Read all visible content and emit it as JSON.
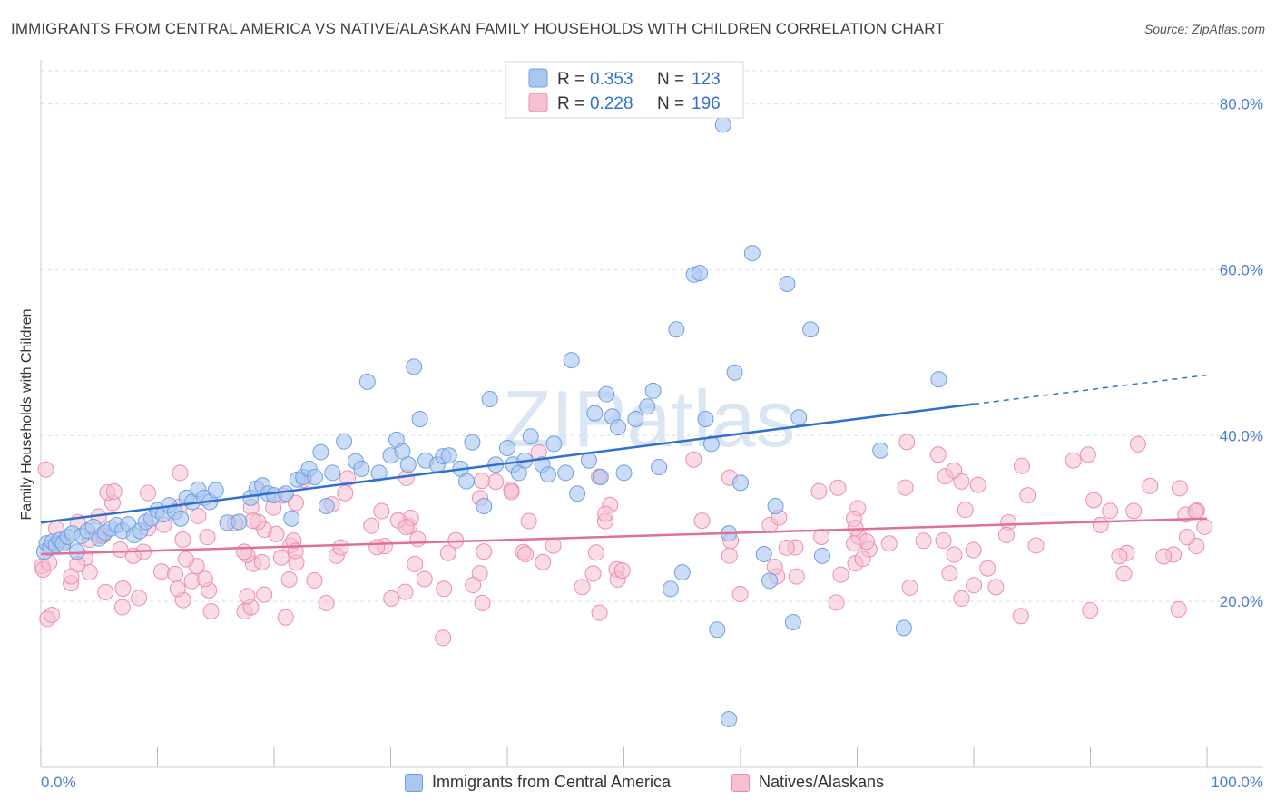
{
  "title": "IMMIGRANTS FROM CENTRAL AMERICA VS NATIVE/ALASKAN FAMILY HOUSEHOLDS WITH CHILDREN CORRELATION CHART",
  "source": "Source: ZipAtlas.com",
  "watermark": "ZIPatlas",
  "colors": {
    "blue_fill": "#a9c7f0",
    "blue_stroke": "#6f9fe0",
    "blue_line": "#2f6fd0",
    "pink_fill": "#f6bfd2",
    "pink_stroke": "#ec8db0",
    "pink_line": "#e0709a",
    "axis_text": "#4a7fd0",
    "grid": "#dddddd"
  },
  "legend_top": [
    {
      "r_label": "R = ",
      "r_value": "0.353",
      "n_label": "N = ",
      "n_value": "123"
    },
    {
      "r_label": "R = ",
      "r_value": "0.228",
      "n_label": "N = ",
      "n_value": "196"
    }
  ],
  "chart_data": {
    "type": "scatter",
    "xlabel": "",
    "ylabel": "Family Households with Children",
    "xlim": [
      0,
      100
    ],
    "ylim": [
      0,
      84
    ],
    "x_tick_labels": [
      "0.0%",
      "100.0%"
    ],
    "y_ticks": [
      20,
      40,
      60,
      80
    ],
    "y_tick_labels": [
      "20.0%",
      "40.0%",
      "60.0%",
      "80.0%"
    ],
    "grid": true,
    "legend_position": "bottom-center",
    "series": [
      {
        "name": "Immigrants from Central America",
        "color": "#a9c7f0",
        "r": 0.353,
        "n": 123,
        "trend": {
          "x0": 0,
          "y0": 29.5,
          "x1": 80,
          "y1": 43.8,
          "dashed_to_x": 100,
          "dashed_to_y": 47.3
        },
        "points": [
          [
            0.3,
            26
          ],
          [
            0.5,
            27
          ],
          [
            0.8,
            26.5
          ],
          [
            1,
            27.2
          ],
          [
            1.3,
            26.8
          ],
          [
            1.6,
            27.4
          ],
          [
            1.9,
            27
          ],
          [
            2.3,
            27.8
          ],
          [
            2.7,
            28.2
          ],
          [
            3.1,
            26
          ],
          [
            3.5,
            27.9
          ],
          [
            4,
            28.5
          ],
          [
            4.5,
            29
          ],
          [
            5,
            27.6
          ],
          [
            5.5,
            28.3
          ],
          [
            6,
            28.8
          ],
          [
            6.5,
            29.2
          ],
          [
            7,
            28.5
          ],
          [
            7.5,
            29.3
          ],
          [
            8,
            28
          ],
          [
            8.5,
            28.5
          ],
          [
            9,
            29.6
          ],
          [
            9.5,
            30
          ],
          [
            10,
            31
          ],
          [
            10.5,
            30.5
          ],
          [
            11,
            31.6
          ],
          [
            11.5,
            30.8
          ],
          [
            12,
            30
          ],
          [
            12.5,
            32.5
          ],
          [
            13,
            32
          ],
          [
            13.5,
            33.5
          ],
          [
            14,
            32.5
          ],
          [
            14.5,
            32
          ],
          [
            15,
            33.4
          ],
          [
            16,
            29.5
          ],
          [
            17,
            29.6
          ],
          [
            18,
            32.5
          ],
          [
            18.5,
            33.6
          ],
          [
            19,
            34
          ],
          [
            19.5,
            33
          ],
          [
            20,
            32.8
          ],
          [
            21,
            33
          ],
          [
            21.5,
            30
          ],
          [
            22,
            34.7
          ],
          [
            22.5,
            35
          ],
          [
            23,
            36
          ],
          [
            23.5,
            35
          ],
          [
            24,
            38
          ],
          [
            24.5,
            31.5
          ],
          [
            25,
            35.5
          ],
          [
            26,
            39.3
          ],
          [
            27,
            36.9
          ],
          [
            27.5,
            36
          ],
          [
            28,
            46.5
          ],
          [
            29,
            35.5
          ],
          [
            30,
            37.6
          ],
          [
            30.5,
            39.5
          ],
          [
            31,
            38.1
          ],
          [
            31.5,
            36.5
          ],
          [
            32,
            48.3
          ],
          [
            32.5,
            42
          ],
          [
            33,
            37
          ],
          [
            34,
            36.5
          ],
          [
            34.5,
            37.5
          ],
          [
            35,
            37.6
          ],
          [
            36,
            36
          ],
          [
            36.5,
            34.5
          ],
          [
            37,
            39.2
          ],
          [
            38,
            31.5
          ],
          [
            38.5,
            44.4
          ],
          [
            39,
            36.5
          ],
          [
            40,
            38.5
          ],
          [
            40.5,
            36.5
          ],
          [
            41,
            35.5
          ],
          [
            41.5,
            37
          ],
          [
            42,
            39.9
          ],
          [
            43,
            36.5
          ],
          [
            43.5,
            35.3
          ],
          [
            44,
            39
          ],
          [
            45,
            35.5
          ],
          [
            45.5,
            49.1
          ],
          [
            46,
            33
          ],
          [
            47,
            37
          ],
          [
            47.5,
            42.7
          ],
          [
            48,
            35
          ],
          [
            48.5,
            45
          ],
          [
            49,
            42.3
          ],
          [
            49.5,
            41
          ],
          [
            50,
            35.5
          ],
          [
            51,
            42
          ],
          [
            52,
            43.5
          ],
          [
            52.5,
            45.4
          ],
          [
            53,
            36.2
          ],
          [
            54,
            21.5
          ],
          [
            54.5,
            52.8
          ],
          [
            55,
            23.5
          ],
          [
            56,
            59.4
          ],
          [
            56.5,
            59.6
          ],
          [
            57,
            42
          ],
          [
            57.5,
            39
          ],
          [
            58,
            16.6
          ],
          [
            59,
            28.2
          ],
          [
            59.5,
            47.6
          ],
          [
            60,
            34.3
          ],
          [
            61,
            62
          ],
          [
            62,
            25.7
          ],
          [
            62.5,
            22.5
          ],
          [
            63,
            31.5
          ],
          [
            64,
            58.3
          ],
          [
            64.5,
            17.5
          ],
          [
            65,
            42.2
          ],
          [
            66,
            52.8
          ],
          [
            67,
            25.5
          ],
          [
            72,
            38.2
          ],
          [
            74,
            16.8
          ],
          [
            77,
            46.8
          ],
          [
            59,
            5.8
          ]
        ]
      },
      {
        "name": "Natives/Alaskans",
        "color": "#f6bfd2",
        "r": 0.228,
        "n": 196,
        "trend": {
          "x0": 0,
          "y0": 25.7,
          "x1": 100,
          "y1": 30
        }
      }
    ]
  },
  "bottom_legend": [
    "Immigrants from Central America",
    "Natives/Alaskans"
  ]
}
